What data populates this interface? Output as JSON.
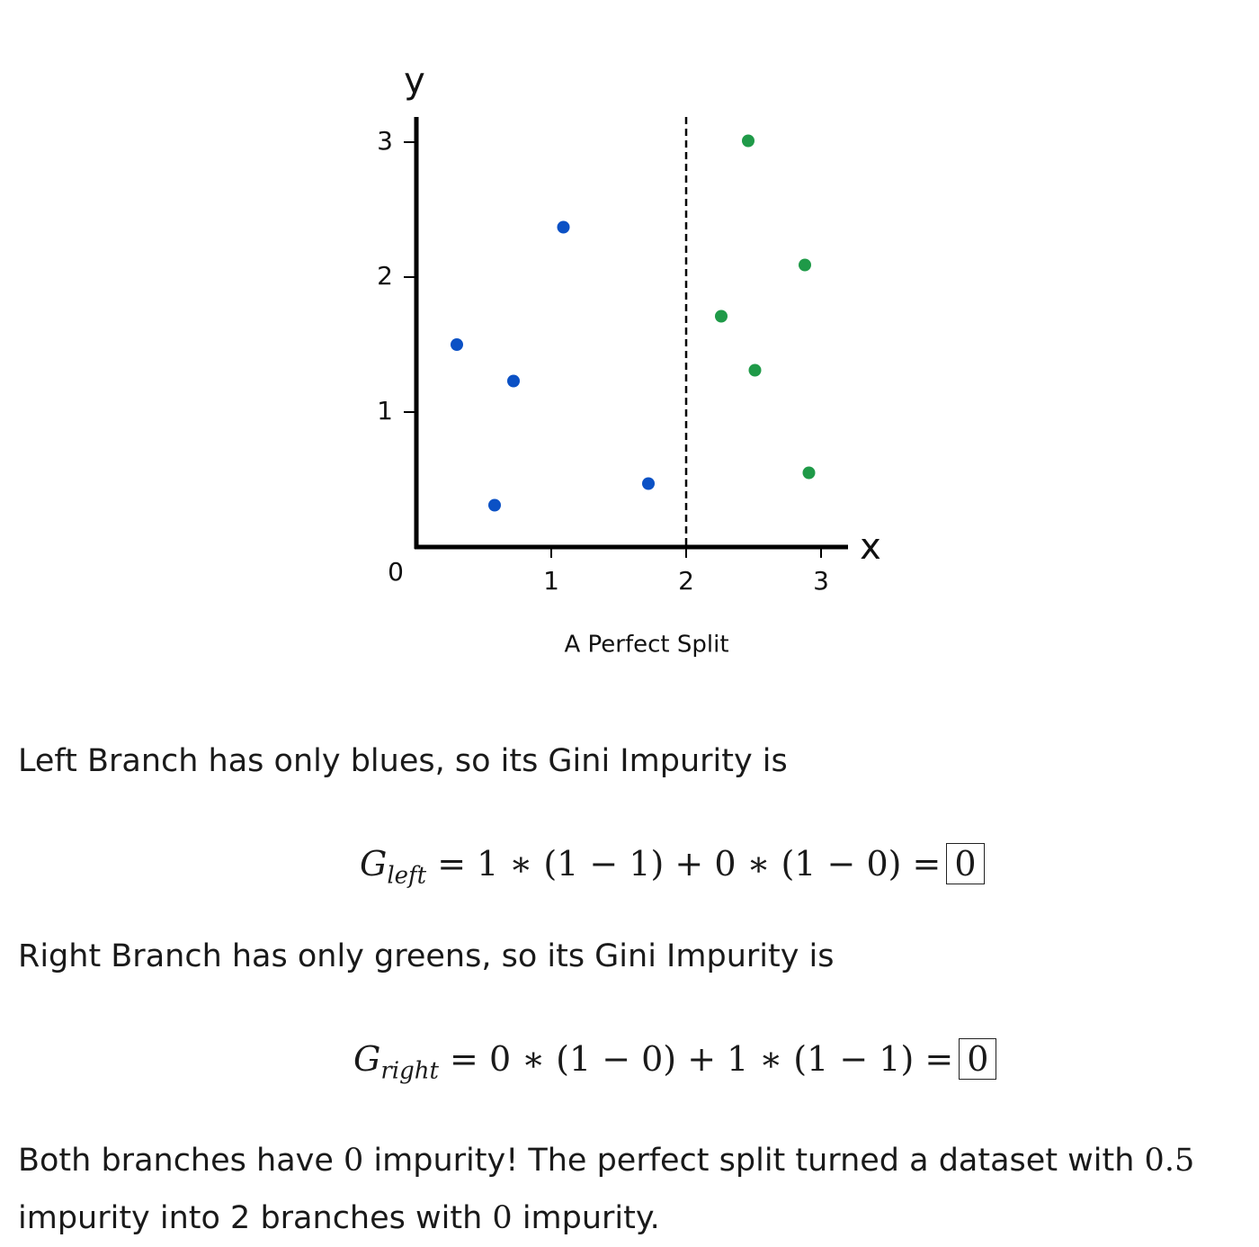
{
  "chart_data": {
    "type": "scatter",
    "caption": "A Perfect Split",
    "x_label": "x",
    "y_label": "y",
    "xlim": [
      0,
      3.2
    ],
    "ylim": [
      0,
      3.2
    ],
    "xticks": [
      1,
      2,
      3
    ],
    "yticks": [
      1,
      2,
      3
    ],
    "origin_tick": 0,
    "split_x": 2,
    "series": [
      {
        "color": "#0b51c5",
        "x": [
          0.3,
          0.72,
          0.58,
          1.09,
          1.72
        ],
        "values": [
          1.5,
          1.23,
          0.31,
          2.37,
          0.47
        ]
      },
      {
        "color": "#1f9a48",
        "x": [
          2.46,
          2.88,
          2.26,
          2.51,
          2.91
        ],
        "values": [
          3.01,
          2.09,
          1.71,
          1.31,
          0.55
        ]
      }
    ]
  },
  "paragraphs": [
    "Left Branch has only blues, so its Gini Impurity is",
    "Right Branch has only greens, so its Gini Impurity is"
  ],
  "equations": [
    {
      "lhs": "G",
      "sub": "left",
      "rhs": "= 1 ∗ (1 − 1) + 0 ∗ (1 − 0) =",
      "result": "0"
    },
    {
      "lhs": "G",
      "sub": "right",
      "rhs": "= 0 ∗ (1 − 0) + 1 ∗ (1 − 1) =",
      "result": "0"
    }
  ],
  "conclusion": [
    "Both branches have ",
    "0",
    " impurity! The perfect split turned a dataset with ",
    "0.5",
    " impurity into 2 branches with ",
    "0",
    " impurity."
  ]
}
